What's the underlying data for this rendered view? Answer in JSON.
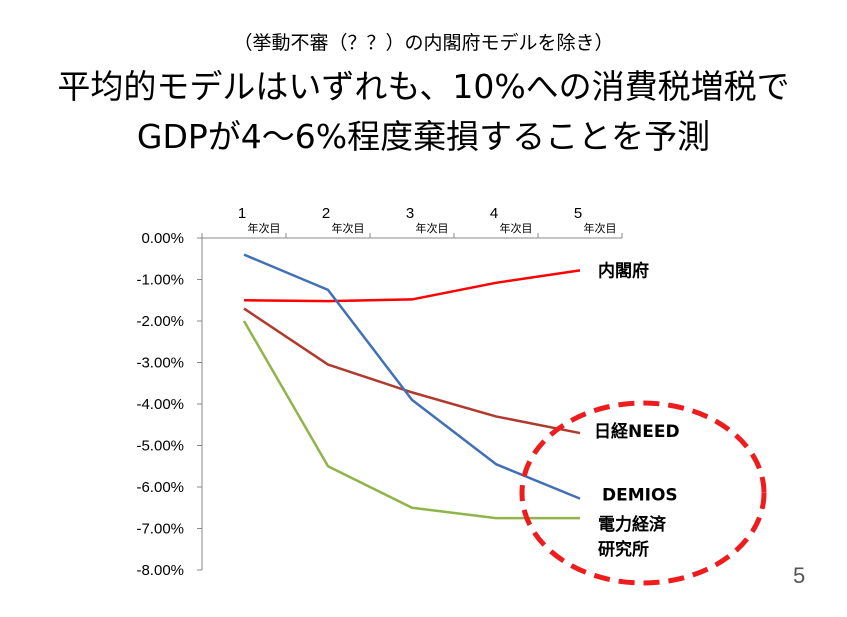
{
  "slide": {
    "subtitle": "（挙動不審（？？）の内閣府モデルを除き）",
    "title_line1": "平均的モデルはいずれも、10%への消費税増税で",
    "title_line2": "GDPが4～6%程度棄損することを予測",
    "page_number": "5"
  },
  "chart_data": {
    "type": "line",
    "title": "",
    "xlabel": "",
    "ylabel": "",
    "x": [
      "1",
      "2",
      "3",
      "4",
      "5"
    ],
    "x_unit": "年次目",
    "x_axis_position": "top",
    "ylim": [
      -0.08,
      0
    ],
    "y_ticks": [
      "0.00%",
      "-1.00%",
      "-2.00%",
      "-3.00%",
      "-4.00%",
      "-5.00%",
      "-6.00%",
      "-7.00%",
      "-8.00%"
    ],
    "grid": false,
    "series": [
      {
        "name": "内閣府",
        "label_lines": [
          "内閣府"
        ],
        "color": "#ff0000",
        "values": [
          -0.015,
          -0.0152,
          -0.0148,
          -0.0108,
          -0.0078
        ]
      },
      {
        "name": "日経NEED",
        "label_lines": [
          "日経NEED"
        ],
        "color": "#b03a2e",
        "values": [
          -0.017,
          -0.0305,
          -0.0372,
          -0.043,
          -0.047
        ]
      },
      {
        "name": "DEMIOS",
        "label_lines": [
          "DEMIOS"
        ],
        "color": "#4170b6",
        "values": [
          -0.004,
          -0.0125,
          -0.039,
          -0.0545,
          -0.0628
        ]
      },
      {
        "name": "電力経済研究所",
        "label_lines": [
          "電力経済",
          "研究所"
        ],
        "color": "#8fb54a",
        "values": [
          -0.02,
          -0.055,
          -0.065,
          -0.0675,
          -0.0675
        ]
      }
    ],
    "highlight": {
      "type": "dashed-ellipse",
      "color": "#ee1c1c"
    }
  }
}
